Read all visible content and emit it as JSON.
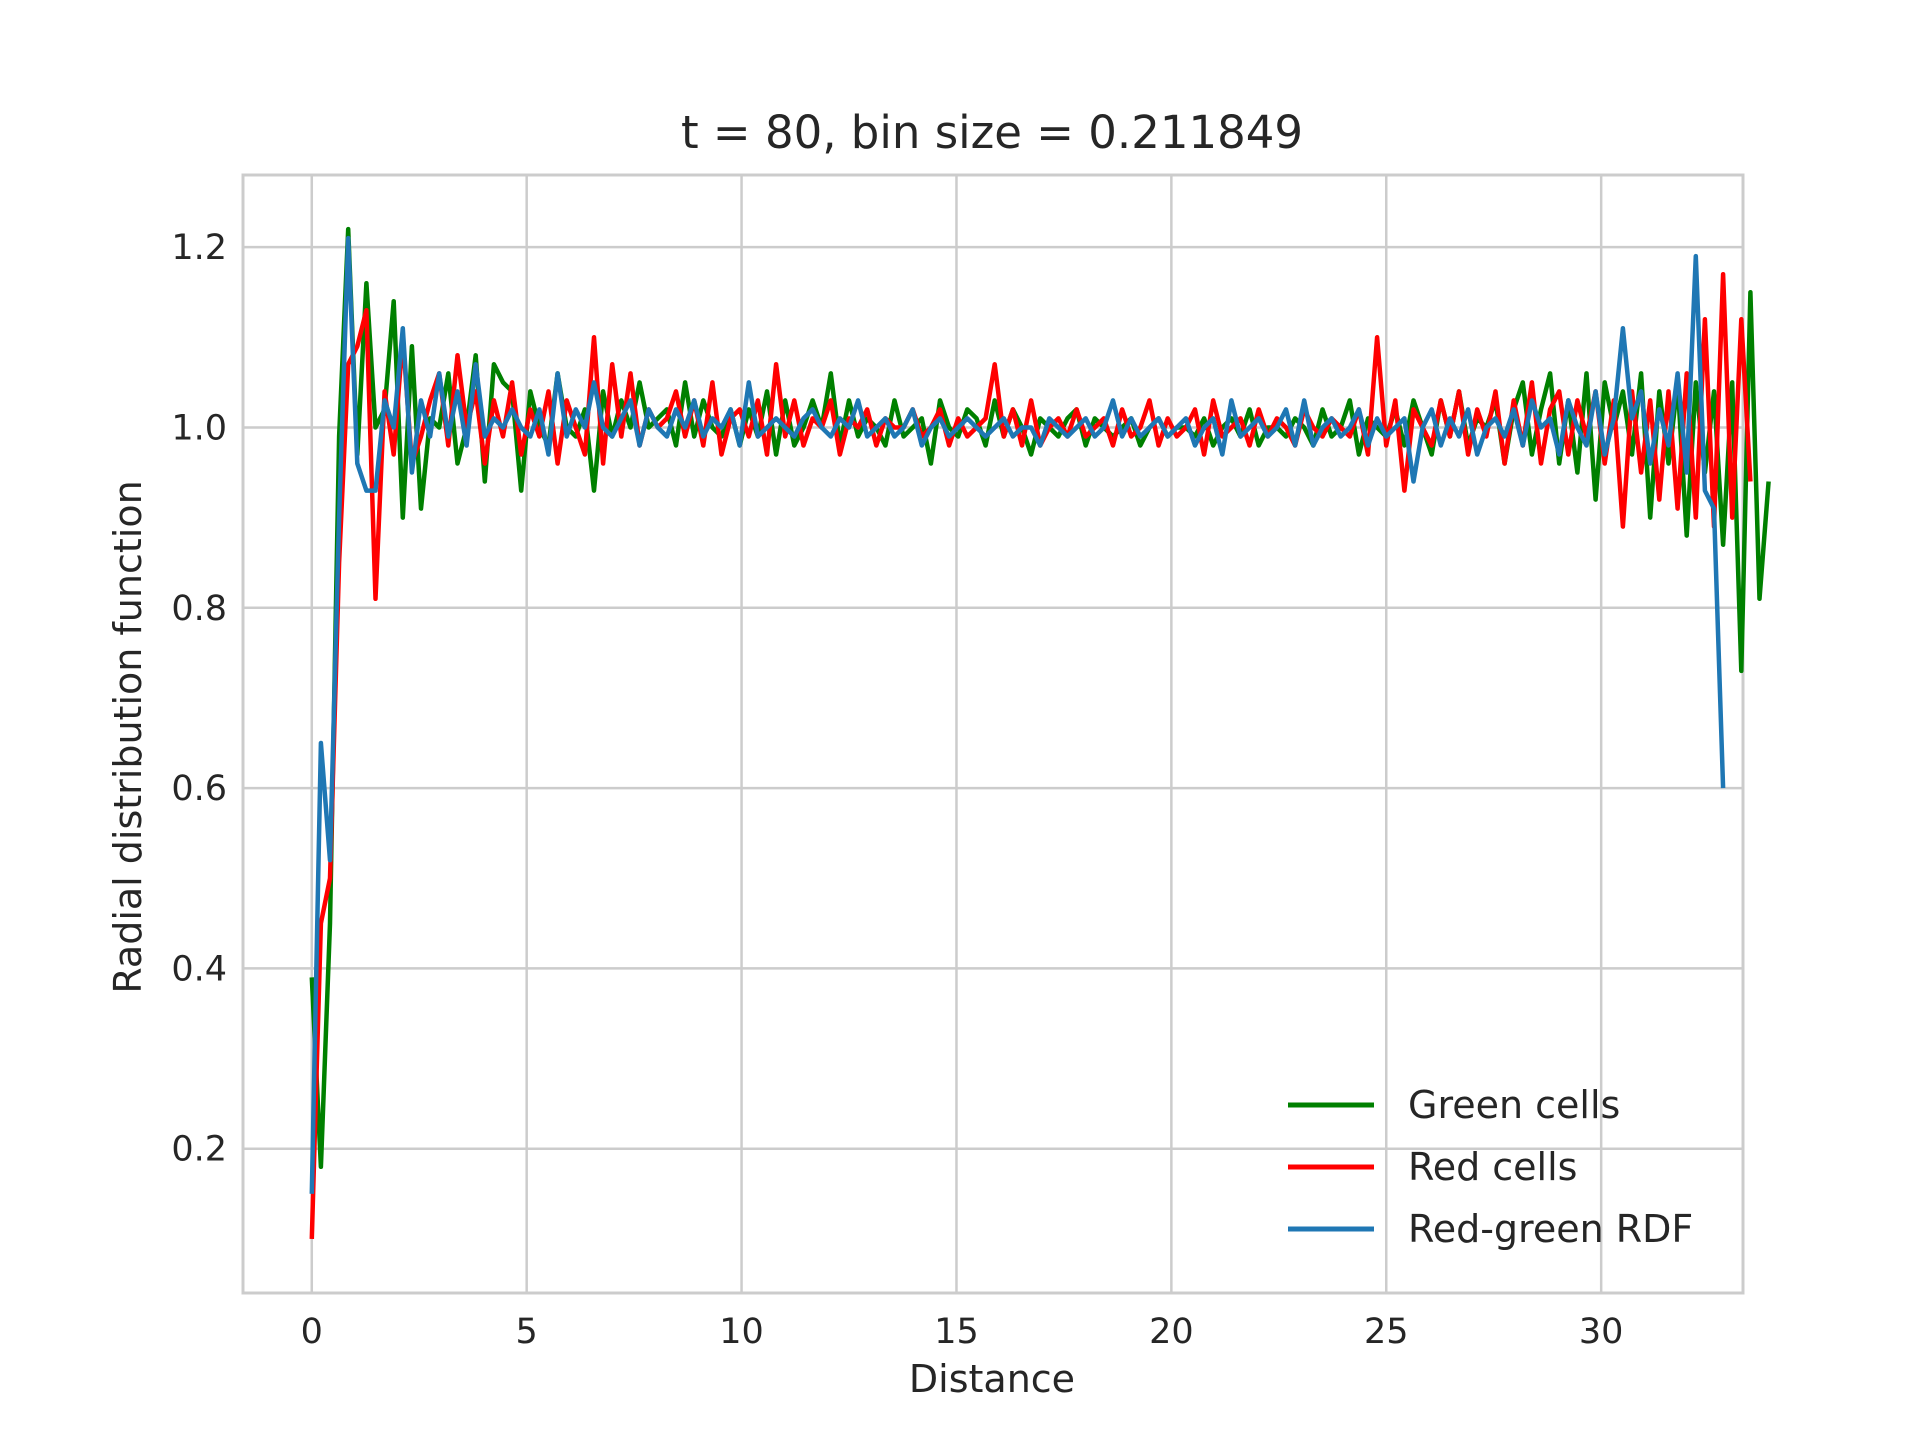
{
  "chart_data": {
    "type": "line",
    "title": "t = 80, bin size = 0.211849",
    "xlabel": "Distance",
    "ylabel": "Radial distribution function",
    "xlim": [
      -1.6,
      33.3
    ],
    "ylim": [
      0.04,
      1.28
    ],
    "xticks": [
      0,
      5,
      10,
      15,
      20,
      25,
      30
    ],
    "yticks": [
      0.2,
      0.4,
      0.6,
      0.8,
      1.0,
      1.2
    ],
    "xtick_labels": [
      "0",
      "5",
      "10",
      "15",
      "20",
      "25",
      "30"
    ],
    "ytick_labels": [
      "0.2",
      "0.4",
      "0.6",
      "0.8",
      "1.0",
      "1.2"
    ],
    "grid": true,
    "legend_position": "lower-right",
    "bin_size": 0.211849,
    "x_start": 0.0,
    "series": [
      {
        "name": "Green cells",
        "color": "#008000",
        "values": [
          0.39,
          0.18,
          0.45,
          0.99,
          1.22,
          0.97,
          1.16,
          1.0,
          1.02,
          1.14,
          0.9,
          1.09,
          0.91,
          1.01,
          1.0,
          1.06,
          0.96,
          1.0,
          1.08,
          0.94,
          1.07,
          1.05,
          1.04,
          0.93,
          1.04,
          1.0,
          0.98,
          1.06,
          1.0,
          0.99,
          1.02,
          0.93,
          1.04,
          0.99,
          1.03,
          1.0,
          1.05,
          1.0,
          1.01,
          1.02,
          0.98,
          1.05,
          0.99,
          1.03,
          1.0,
          0.99,
          1.02,
          0.98,
          1.02,
          0.99,
          1.04,
          0.97,
          1.03,
          0.98,
          1.0,
          1.03,
          1.0,
          1.06,
          0.98,
          1.03,
          0.99,
          1.01,
          1.0,
          0.98,
          1.03,
          0.99,
          1.0,
          1.01,
          0.96,
          1.03,
          1.0,
          0.99,
          1.02,
          1.01,
          0.98,
          1.03,
          0.99,
          1.02,
          1.0,
          0.97,
          1.01,
          1.0,
          0.99,
          1.01,
          1.02,
          0.98,
          1.01,
          1.0,
          0.99,
          1.0,
          1.01,
          0.98,
          1.0,
          1.01,
          0.99,
          1.0,
          1.0,
          0.99,
          1.01,
          0.98,
          1.0,
          1.01,
          0.99,
          1.02,
          0.98,
          1.0,
          1.0,
          0.99,
          1.01,
          1.0,
          0.98,
          1.02,
          0.99,
          1.0,
          1.03,
          0.97,
          1.01,
          1.0,
          0.99,
          1.02,
          0.98,
          1.03,
          1.0,
          0.97,
          1.03,
          0.99,
          1.04,
          0.98,
          1.01,
          1.0,
          1.03,
          0.96,
          1.02,
          1.05,
          0.97,
          1.02,
          1.06,
          0.96,
          1.03,
          0.95,
          1.06,
          0.92,
          1.05,
          1.0,
          1.04,
          0.97,
          1.06,
          0.9,
          1.04,
          0.96,
          1.05,
          0.88,
          1.05,
          0.95,
          1.04,
          0.87,
          1.05,
          0.73,
          1.15,
          0.81,
          0.94
        ]
      },
      {
        "name": "Red cells",
        "color": "#ff0000",
        "values": [
          0.1,
          0.45,
          0.5,
          0.85,
          1.07,
          1.09,
          1.13,
          0.81,
          1.04,
          0.97,
          1.1,
          0.96,
          0.99,
          1.03,
          1.06,
          0.98,
          1.08,
          1.0,
          1.04,
          0.96,
          1.03,
          0.99,
          1.05,
          0.97,
          1.02,
          0.99,
          1.04,
          0.96,
          1.03,
          1.0,
          0.97,
          1.1,
          0.96,
          1.07,
          0.99,
          1.06,
          0.98,
          1.02,
          1.0,
          1.01,
          1.04,
          0.99,
          1.03,
          0.98,
          1.05,
          0.97,
          1.01,
          1.02,
          0.99,
          1.03,
          0.97,
          1.07,
          0.99,
          1.03,
          0.98,
          1.01,
          1.0,
          1.03,
          0.97,
          1.01,
          1.0,
          1.02,
          0.98,
          1.01,
          1.0,
          1.0,
          1.02,
          0.99,
          1.0,
          1.02,
          0.98,
          1.01,
          0.99,
          1.0,
          1.01,
          1.07,
          0.99,
          1.02,
          0.98,
          1.03,
          0.98,
          1.0,
          1.01,
          0.99,
          1.02,
          0.99,
          1.0,
          1.01,
          0.98,
          1.02,
          0.99,
          1.0,
          1.03,
          0.98,
          1.01,
          0.99,
          1.0,
          1.02,
          0.97,
          1.03,
          0.99,
          1.0,
          1.01,
          0.98,
          1.02,
          0.99,
          1.01,
          1.0,
          0.98,
          1.02,
          1.0,
          0.99,
          1.01,
          1.0,
          0.99,
          1.02,
          0.97,
          1.1,
          0.98,
          1.03,
          0.93,
          1.02,
          1.0,
          0.98,
          1.03,
          0.99,
          1.04,
          0.97,
          1.02,
          0.99,
          1.04,
          0.96,
          1.03,
          0.98,
          1.05,
          0.96,
          1.02,
          1.04,
          0.97,
          1.03,
          0.99,
          1.04,
          0.96,
          1.03,
          0.89,
          1.04,
          0.95,
          1.03,
          0.92,
          1.04,
          0.91,
          1.06,
          0.9,
          1.12,
          0.89,
          1.17,
          0.9,
          1.12,
          0.94
        ]
      },
      {
        "name": "Red-green RDF",
        "color": "#1f77b4",
        "values": [
          0.15,
          0.65,
          0.52,
          0.9,
          1.21,
          0.96,
          0.93,
          0.93,
          1.03,
          1.0,
          1.11,
          0.95,
          1.03,
          0.99,
          1.06,
          0.99,
          1.04,
          0.98,
          1.07,
          0.99,
          1.01,
          1.0,
          1.02,
          1.0,
          0.99,
          1.02,
          0.97,
          1.06,
          0.99,
          1.02,
          1.0,
          1.05,
          1.0,
          0.99,
          1.01,
          1.03,
          0.98,
          1.02,
          1.0,
          0.99,
          1.02,
          1.0,
          1.03,
          0.99,
          1.01,
          1.0,
          1.02,
          0.98,
          1.05,
          0.99,
          1.0,
          1.01,
          1.0,
          0.99,
          1.01,
          1.02,
          1.0,
          0.99,
          1.01,
          1.0,
          1.03,
          0.99,
          1.0,
          1.01,
          0.99,
          1.0,
          1.02,
          0.98,
          1.0,
          1.01,
          0.99,
          1.0,
          1.01,
          1.0,
          0.99,
          1.0,
          1.01,
          0.99,
          1.0,
          1.0,
          0.98,
          1.01,
          1.0,
          0.99,
          1.0,
          1.01,
          0.99,
          1.0,
          1.03,
          0.99,
          1.01,
          0.99,
          1.0,
          1.01,
          0.99,
          1.0,
          1.01,
          0.98,
          1.0,
          1.01,
          0.97,
          1.03,
          0.99,
          1.0,
          1.01,
          0.99,
          1.0,
          1.02,
          0.98,
          1.03,
          0.98,
          1.0,
          1.01,
          0.99,
          1.0,
          1.02,
          0.98,
          1.01,
          0.99,
          1.0,
          1.01,
          0.94,
          1.0,
          1.02,
          0.98,
          1.01,
          0.99,
          1.02,
          0.97,
          1.0,
          1.01,
          0.99,
          1.02,
          0.98,
          1.03,
          1.0,
          1.01,
          0.97,
          1.03,
          1.0,
          0.98,
          1.04,
          0.97,
          1.01,
          1.11,
          1.01,
          1.04,
          0.96,
          1.02,
          0.98,
          1.06,
          0.95,
          1.19,
          0.93,
          0.91,
          0.6
        ]
      }
    ]
  }
}
